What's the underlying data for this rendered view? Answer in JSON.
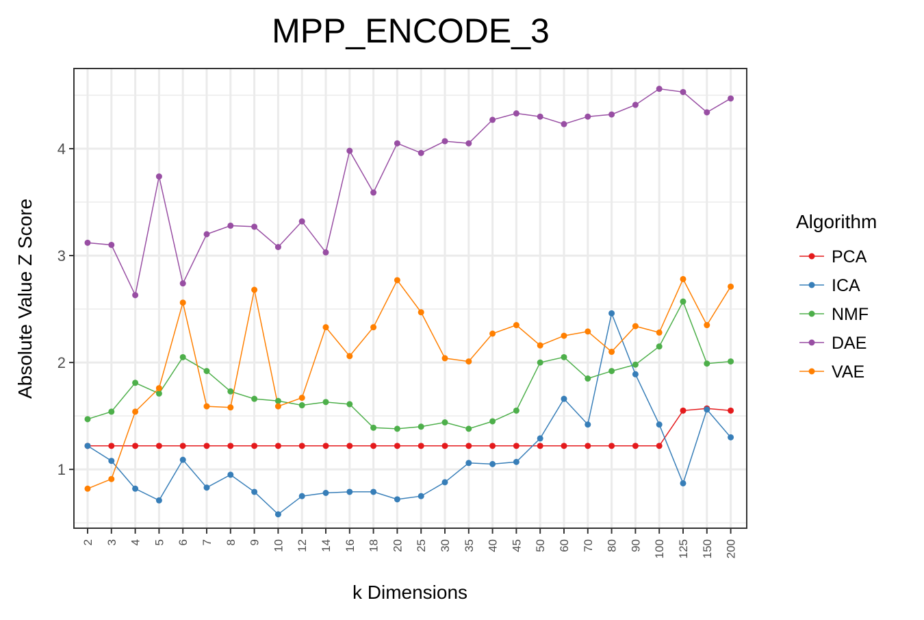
{
  "chart_data": {
    "type": "line",
    "title": "MPP_ENCODE_3",
    "xlabel": "k Dimensions",
    "ylabel": "Absolute Value Z Score",
    "categories": [
      "2",
      "3",
      "4",
      "5",
      "6",
      "7",
      "8",
      "9",
      "10",
      "12",
      "14",
      "16",
      "18",
      "20",
      "25",
      "30",
      "35",
      "40",
      "45",
      "50",
      "60",
      "70",
      "80",
      "90",
      "100",
      "125",
      "150",
      "200"
    ],
    "ylim": [
      0.45,
      4.75
    ],
    "yticks": [
      1,
      2,
      3,
      4
    ],
    "grid": true,
    "legend": {
      "title": "Algorithm",
      "placement": "right"
    },
    "series": [
      {
        "name": "PCA",
        "color": "#e41a1c",
        "values": [
          1.22,
          1.22,
          1.22,
          1.22,
          1.22,
          1.22,
          1.22,
          1.22,
          1.22,
          1.22,
          1.22,
          1.22,
          1.22,
          1.22,
          1.22,
          1.22,
          1.22,
          1.22,
          1.22,
          1.22,
          1.22,
          1.22,
          1.22,
          1.22,
          1.22,
          1.55,
          1.57,
          1.55
        ]
      },
      {
        "name": "ICA",
        "color": "#377eb8",
        "values": [
          1.22,
          1.08,
          0.82,
          0.71,
          1.09,
          0.83,
          0.95,
          0.79,
          0.58,
          0.75,
          0.78,
          0.79,
          0.79,
          0.72,
          0.75,
          0.88,
          1.06,
          1.05,
          1.07,
          1.29,
          1.66,
          1.42,
          2.46,
          1.89,
          1.42,
          0.87,
          1.56,
          1.3
        ]
      },
      {
        "name": "NMF",
        "color": "#4daf4a",
        "values": [
          1.47,
          1.54,
          1.81,
          1.71,
          2.05,
          1.92,
          1.73,
          1.66,
          1.64,
          1.6,
          1.63,
          1.61,
          1.39,
          1.38,
          1.4,
          1.44,
          1.38,
          1.45,
          1.55,
          2.0,
          2.05,
          1.85,
          1.92,
          1.98,
          2.15,
          2.57,
          1.99,
          2.01
        ]
      },
      {
        "name": "DAE",
        "color": "#984ea3",
        "values": [
          3.12,
          3.1,
          2.63,
          3.74,
          2.74,
          3.2,
          3.28,
          3.27,
          3.08,
          3.32,
          3.03,
          3.98,
          3.59,
          4.05,
          3.96,
          4.07,
          4.05,
          4.27,
          4.33,
          4.3,
          4.23,
          4.3,
          4.32,
          4.41,
          4.56,
          4.53,
          4.34,
          4.47
        ]
      },
      {
        "name": "VAE",
        "color": "#ff7f00",
        "values": [
          0.82,
          0.91,
          1.54,
          1.76,
          2.56,
          1.59,
          1.58,
          2.68,
          1.59,
          1.67,
          2.33,
          2.06,
          2.33,
          2.77,
          2.47,
          2.04,
          2.01,
          2.27,
          2.35,
          2.16,
          2.25,
          2.29,
          2.1,
          2.34,
          2.28,
          2.78,
          2.35,
          2.71
        ]
      }
    ]
  }
}
